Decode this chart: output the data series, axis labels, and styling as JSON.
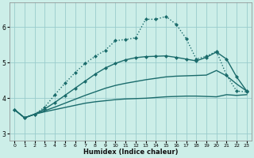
{
  "xlabel": "Humidex (Indice chaleur)",
  "background_color": "#cceee8",
  "grid_color": "#99cccc",
  "line_color": "#1a6b6b",
  "xlim": [
    -0.5,
    23.5
  ],
  "ylim": [
    2.8,
    6.7
  ],
  "xticks": [
    0,
    1,
    2,
    3,
    4,
    5,
    6,
    7,
    8,
    9,
    10,
    11,
    12,
    13,
    14,
    15,
    16,
    17,
    18,
    19,
    20,
    21,
    22,
    23
  ],
  "yticks": [
    3,
    4,
    5,
    6
  ],
  "series": [
    {
      "x": [
        0,
        1,
        2,
        3,
        4,
        5,
        6,
        7,
        8,
        9,
        10,
        11,
        12,
        13,
        14,
        15,
        16,
        17,
        18,
        19,
        20,
        21,
        22,
        23
      ],
      "y": [
        3.68,
        3.45,
        3.55,
        3.62,
        3.68,
        3.74,
        3.8,
        3.86,
        3.9,
        3.93,
        3.96,
        3.98,
        3.99,
        4.0,
        4.02,
        4.04,
        4.05,
        4.06,
        4.06,
        4.05,
        4.04,
        4.1,
        4.08,
        4.1
      ],
      "marker": null,
      "linestyle": "-",
      "linewidth": 1.0
    },
    {
      "x": [
        0,
        1,
        2,
        3,
        4,
        5,
        6,
        7,
        8,
        9,
        10,
        11,
        12,
        13,
        14,
        15,
        16,
        17,
        18,
        19,
        20,
        21,
        22,
        23
      ],
      "y": [
        3.68,
        3.45,
        3.55,
        3.65,
        3.75,
        3.86,
        3.97,
        4.08,
        4.18,
        4.28,
        4.36,
        4.42,
        4.47,
        4.52,
        4.56,
        4.6,
        4.62,
        4.63,
        4.64,
        4.65,
        4.78,
        4.63,
        4.4,
        4.2
      ],
      "marker": null,
      "linestyle": "-",
      "linewidth": 1.0
    },
    {
      "x": [
        0,
        1,
        2,
        3,
        4,
        5,
        6,
        7,
        8,
        9,
        10,
        11,
        12,
        13,
        14,
        15,
        16,
        17,
        18,
        19,
        20,
        21,
        22,
        23
      ],
      "y": [
        3.68,
        3.45,
        3.55,
        3.7,
        3.88,
        4.08,
        4.28,
        4.48,
        4.68,
        4.85,
        4.98,
        5.08,
        5.14,
        5.17,
        5.18,
        5.19,
        5.15,
        5.1,
        5.05,
        5.15,
        5.3,
        5.1,
        4.6,
        4.2
      ],
      "marker": "D",
      "linestyle": "-",
      "linewidth": 1.0
    },
    {
      "x": [
        0,
        1,
        2,
        3,
        4,
        5,
        6,
        7,
        8,
        9,
        10,
        11,
        12,
        13,
        14,
        15,
        16,
        17,
        18,
        19,
        20,
        21,
        22,
        23
      ],
      "y": [
        3.68,
        3.45,
        3.55,
        3.75,
        4.1,
        4.42,
        4.72,
        4.98,
        5.18,
        5.35,
        5.62,
        5.65,
        5.7,
        6.22,
        6.22,
        6.3,
        6.08,
        5.68,
        5.1,
        5.18,
        5.32,
        4.65,
        4.2,
        4.18
      ],
      "marker": "D",
      "linestyle": ":",
      "linewidth": 1.0
    }
  ]
}
